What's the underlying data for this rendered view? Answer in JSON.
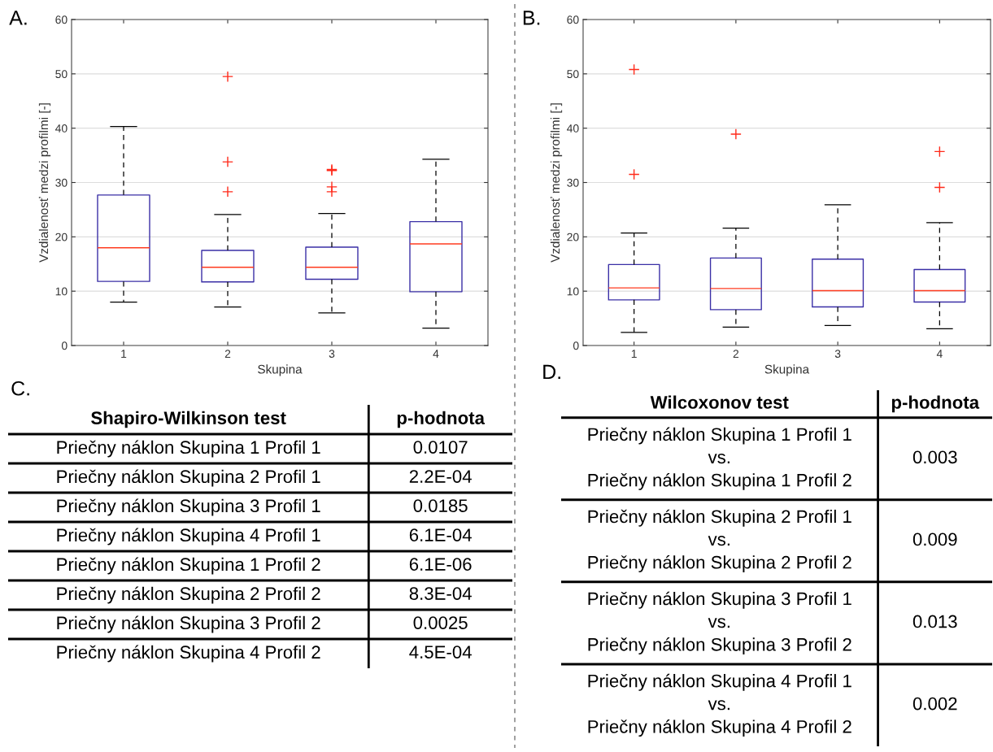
{
  "chart_data": [
    {
      "type": "box",
      "title": "A.",
      "xlabel": "Skupina",
      "ylabel": "Vzdialenosť medzi profilmi [-]",
      "categories": [
        "1",
        "2",
        "3",
        "4"
      ],
      "ylim": [
        0,
        60
      ],
      "yticks": [
        0,
        10,
        20,
        30,
        40,
        50,
        60
      ],
      "grid": "y",
      "series": [
        {
          "color": "#3a2fa6",
          "boxes": [
            {
              "low": 8,
              "q1": 11.8,
              "median": 18,
              "q3": 27.7,
              "high": 40.3
            },
            {
              "low": 7.1,
              "q1": 11.7,
              "median": 14.4,
              "q3": 17.5,
              "high": 24.1,
              "outliers": [
                28.3,
                33.8,
                49.5
              ]
            },
            {
              "low": 6,
              "q1": 12.2,
              "median": 14.4,
              "q3": 18.1,
              "high": 24.3,
              "outliers": [
                28.3,
                29.2,
                32.2,
                32.4
              ]
            },
            {
              "low": 3.2,
              "q1": 9.9,
              "median": 18.7,
              "q3": 22.8,
              "high": 34.3
            }
          ]
        }
      ]
    },
    {
      "type": "box",
      "title": "B.",
      "xlabel": "Skupina",
      "ylabel": "Vzdialenosť medzi profilmi [-]",
      "categories": [
        "1",
        "2",
        "3",
        "4"
      ],
      "ylim": [
        0,
        60
      ],
      "yticks": [
        0,
        10,
        20,
        30,
        40,
        50,
        60
      ],
      "grid": "y",
      "series": [
        {
          "color": "#3a2fa6",
          "boxes": [
            {
              "low": 2.4,
              "q1": 8.4,
              "median": 10.6,
              "q3": 14.9,
              "high": 20.7,
              "outliers": [
                31.5,
                50.8
              ]
            },
            {
              "low": 3.4,
              "q1": 6.6,
              "median": 10.5,
              "q3": 16.1,
              "high": 21.6,
              "outliers": [
                38.9
              ]
            },
            {
              "low": 3.7,
              "q1": 7.1,
              "median": 10.1,
              "q3": 15.9,
              "high": 25.9
            },
            {
              "low": 3.1,
              "q1": 8,
              "median": 10.1,
              "q3": 14,
              "high": 22.6,
              "outliers": [
                29.1,
                35.7
              ]
            }
          ]
        }
      ]
    },
    {
      "type": "other",
      "title": "C.",
      "annotations": [
        "Shapiro-Wilkinson test",
        "p-hodnota",
        "Priečny náklon Skupina 1 Profil 1",
        "0.0107",
        "Priečny náklon Skupina 2 Profil 1",
        "2.2E-04",
        "Priečny náklon Skupina 3 Profil 1",
        "0.0185",
        "Priečny náklon Skupina 4 Profil 1",
        "6.1E-04",
        "Priečny náklon Skupina 1 Profil 2",
        "6.1E-06",
        "Priečny náklon Skupina 2 Profil 2",
        "8.3E-04",
        "Priečny náklon Skupina 3 Profil 2",
        "0.0025",
        "Priečny náklon Skupina 4 Profil 2",
        "4.5E-04"
      ]
    },
    {
      "type": "other",
      "title": "D.",
      "annotations": [
        "Wilcoxonov test",
        "p-hodnota",
        "Priečny náklon Skupina 1 Profil 1\nvs.\nPriečny náklon Skupina 1 Profil 2",
        "0.003",
        "Priečny náklon Skupina 2 Profil 1\nvs.\nPriečny náklon Skupina 2 Profil 2",
        "0.009",
        "Priečny náklon Skupina 3 Profil 1\nvs.\nPriečny náklon Skupina 3 Profil 2",
        "0.013",
        "Priečny náklon Skupina 4 Profil 1\nvs.\nPriečny náklon Skupina 4 Profil 2",
        "0.002"
      ]
    }
  ]
}
